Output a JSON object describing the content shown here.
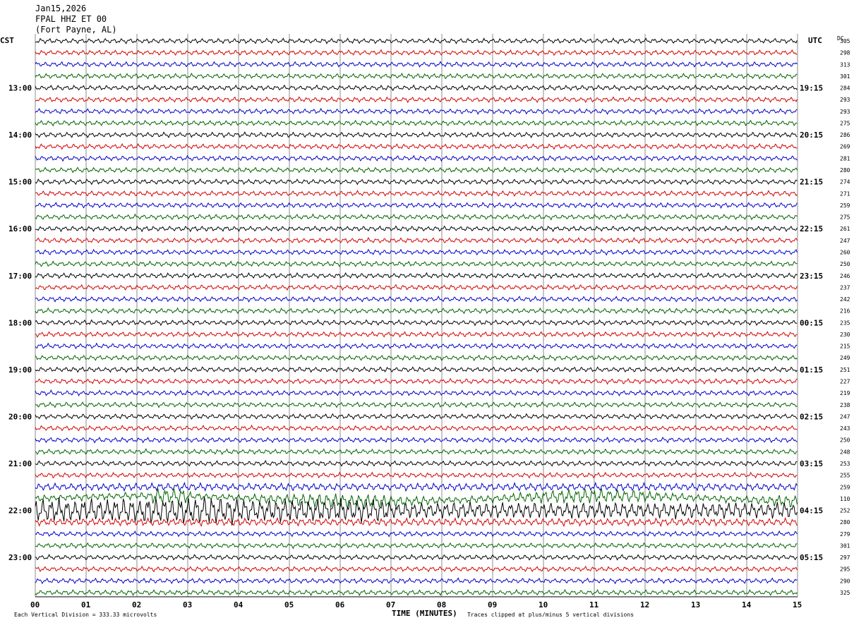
{
  "header": {
    "date": "Jan15,2026",
    "station": "FPAL HHZ ET 00",
    "location": "(Fort Payne, AL)"
  },
  "left_tz": "CST",
  "right_tz": "UTC",
  "dc_header": "DC",
  "footer": {
    "left_note": "Each Vertical Division =  333.33 microvolts",
    "xlabel": "TIME (MINUTES)",
    "right_note": "Traces clipped at plus/minus 5 vertical divisions"
  },
  "colors": {
    "trace_cycle": [
      "#000000",
      "#d40000",
      "#0000c8",
      "#006400"
    ],
    "grid": "#707070"
  },
  "chart_data": {
    "type": "line",
    "xlabel": "TIME (MINUTES)",
    "xlim": [
      0,
      15
    ],
    "x_ticks": [
      "00",
      "01",
      "02",
      "03",
      "04",
      "05",
      "06",
      "07",
      "08",
      "09",
      "10",
      "11",
      "12",
      "13",
      "14",
      "15"
    ],
    "left_hour_labels": [
      {
        "row": 4,
        "label": "13:00"
      },
      {
        "row": 8,
        "label": "14:00"
      },
      {
        "row": 12,
        "label": "15:00"
      },
      {
        "row": 16,
        "label": "16:00"
      },
      {
        "row": 20,
        "label": "17:00"
      },
      {
        "row": 24,
        "label": "18:00"
      },
      {
        "row": 28,
        "label": "19:00"
      },
      {
        "row": 32,
        "label": "20:00"
      },
      {
        "row": 36,
        "label": "21:00"
      },
      {
        "row": 40,
        "label": "22:00"
      },
      {
        "row": 44,
        "label": "23:00"
      }
    ],
    "right_hour_labels": [
      {
        "row": 4,
        "label": "19:15"
      },
      {
        "row": 8,
        "label": "20:15"
      },
      {
        "row": 12,
        "label": "21:15"
      },
      {
        "row": 16,
        "label": "22:15"
      },
      {
        "row": 20,
        "label": "23:15"
      },
      {
        "row": 24,
        "label": "00:15"
      },
      {
        "row": 28,
        "label": "01:15"
      },
      {
        "row": 32,
        "label": "02:15"
      },
      {
        "row": 36,
        "label": "03:15"
      },
      {
        "row": 40,
        "label": "04:15"
      },
      {
        "row": 44,
        "label": "05:15"
      }
    ],
    "dc_offsets": [
      "305",
      "298",
      "313",
      "301",
      "284",
      "293",
      "293",
      "275",
      "286",
      "269",
      "281",
      "280",
      "274",
      "271",
      "259",
      "275",
      "261",
      "247",
      "260",
      "250",
      "246",
      "237",
      "242",
      "216",
      "235",
      "230",
      "215",
      "249",
      "251",
      "227",
      "219",
      "238",
      "247",
      "243",
      "250",
      "248",
      "253",
      "255",
      "259",
      "110",
      "252",
      "280",
      "279",
      "301",
      "297",
      "295",
      "290",
      "325"
    ],
    "event": {
      "row": 39,
      "start_min": 0.0,
      "peak_min": 2.6
    }
  }
}
